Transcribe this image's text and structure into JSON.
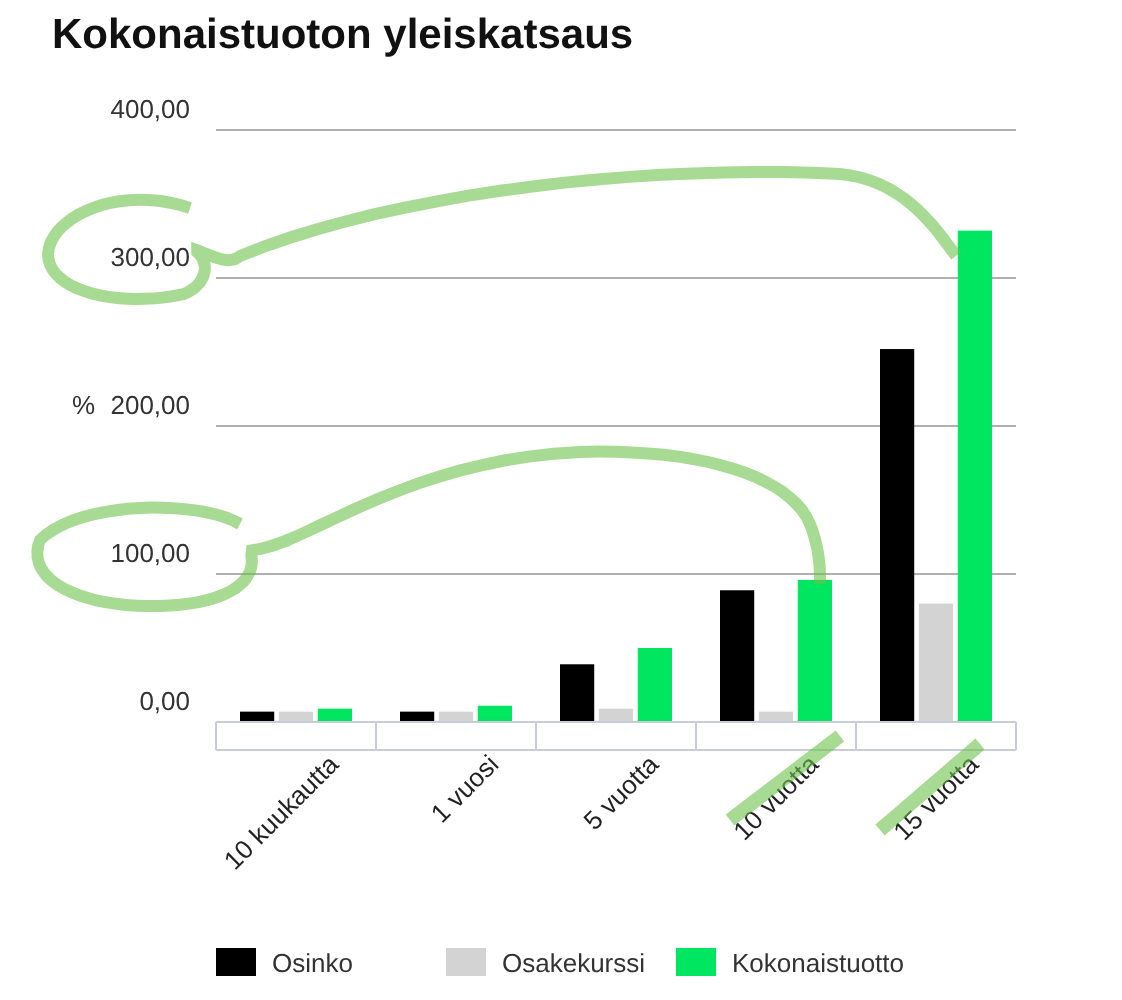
{
  "chart_data": {
    "type": "bar",
    "title": "Kokonaistuoton yleiskatsaus",
    "ylabel": "%",
    "categories": [
      "10 kuukautta",
      "1 vuosi",
      "5 vuotta",
      "10 vuotta",
      "15 vuotta"
    ],
    "series": [
      {
        "name": "Osinko",
        "color": "#000000",
        "values": [
          7,
          7,
          39,
          89,
          252
        ]
      },
      {
        "name": "Osakekurssi",
        "color": "#d3d3d3",
        "values": [
          7,
          7,
          9,
          7,
          80
        ]
      },
      {
        "name": "Kokonaistuotto",
        "color": "#00e660",
        "values": [
          9,
          11,
          50,
          96,
          332
        ]
      }
    ],
    "ylim": [
      0,
      400
    ],
    "yticks": [
      {
        "value": 0,
        "label": "0,00"
      },
      {
        "value": 100,
        "label": "100,00"
      },
      {
        "value": 200,
        "label": "200,00"
      },
      {
        "value": 300,
        "label": "300,00"
      },
      {
        "value": 400,
        "label": "400,00"
      }
    ],
    "grid": "y",
    "legend": "bottom"
  }
}
